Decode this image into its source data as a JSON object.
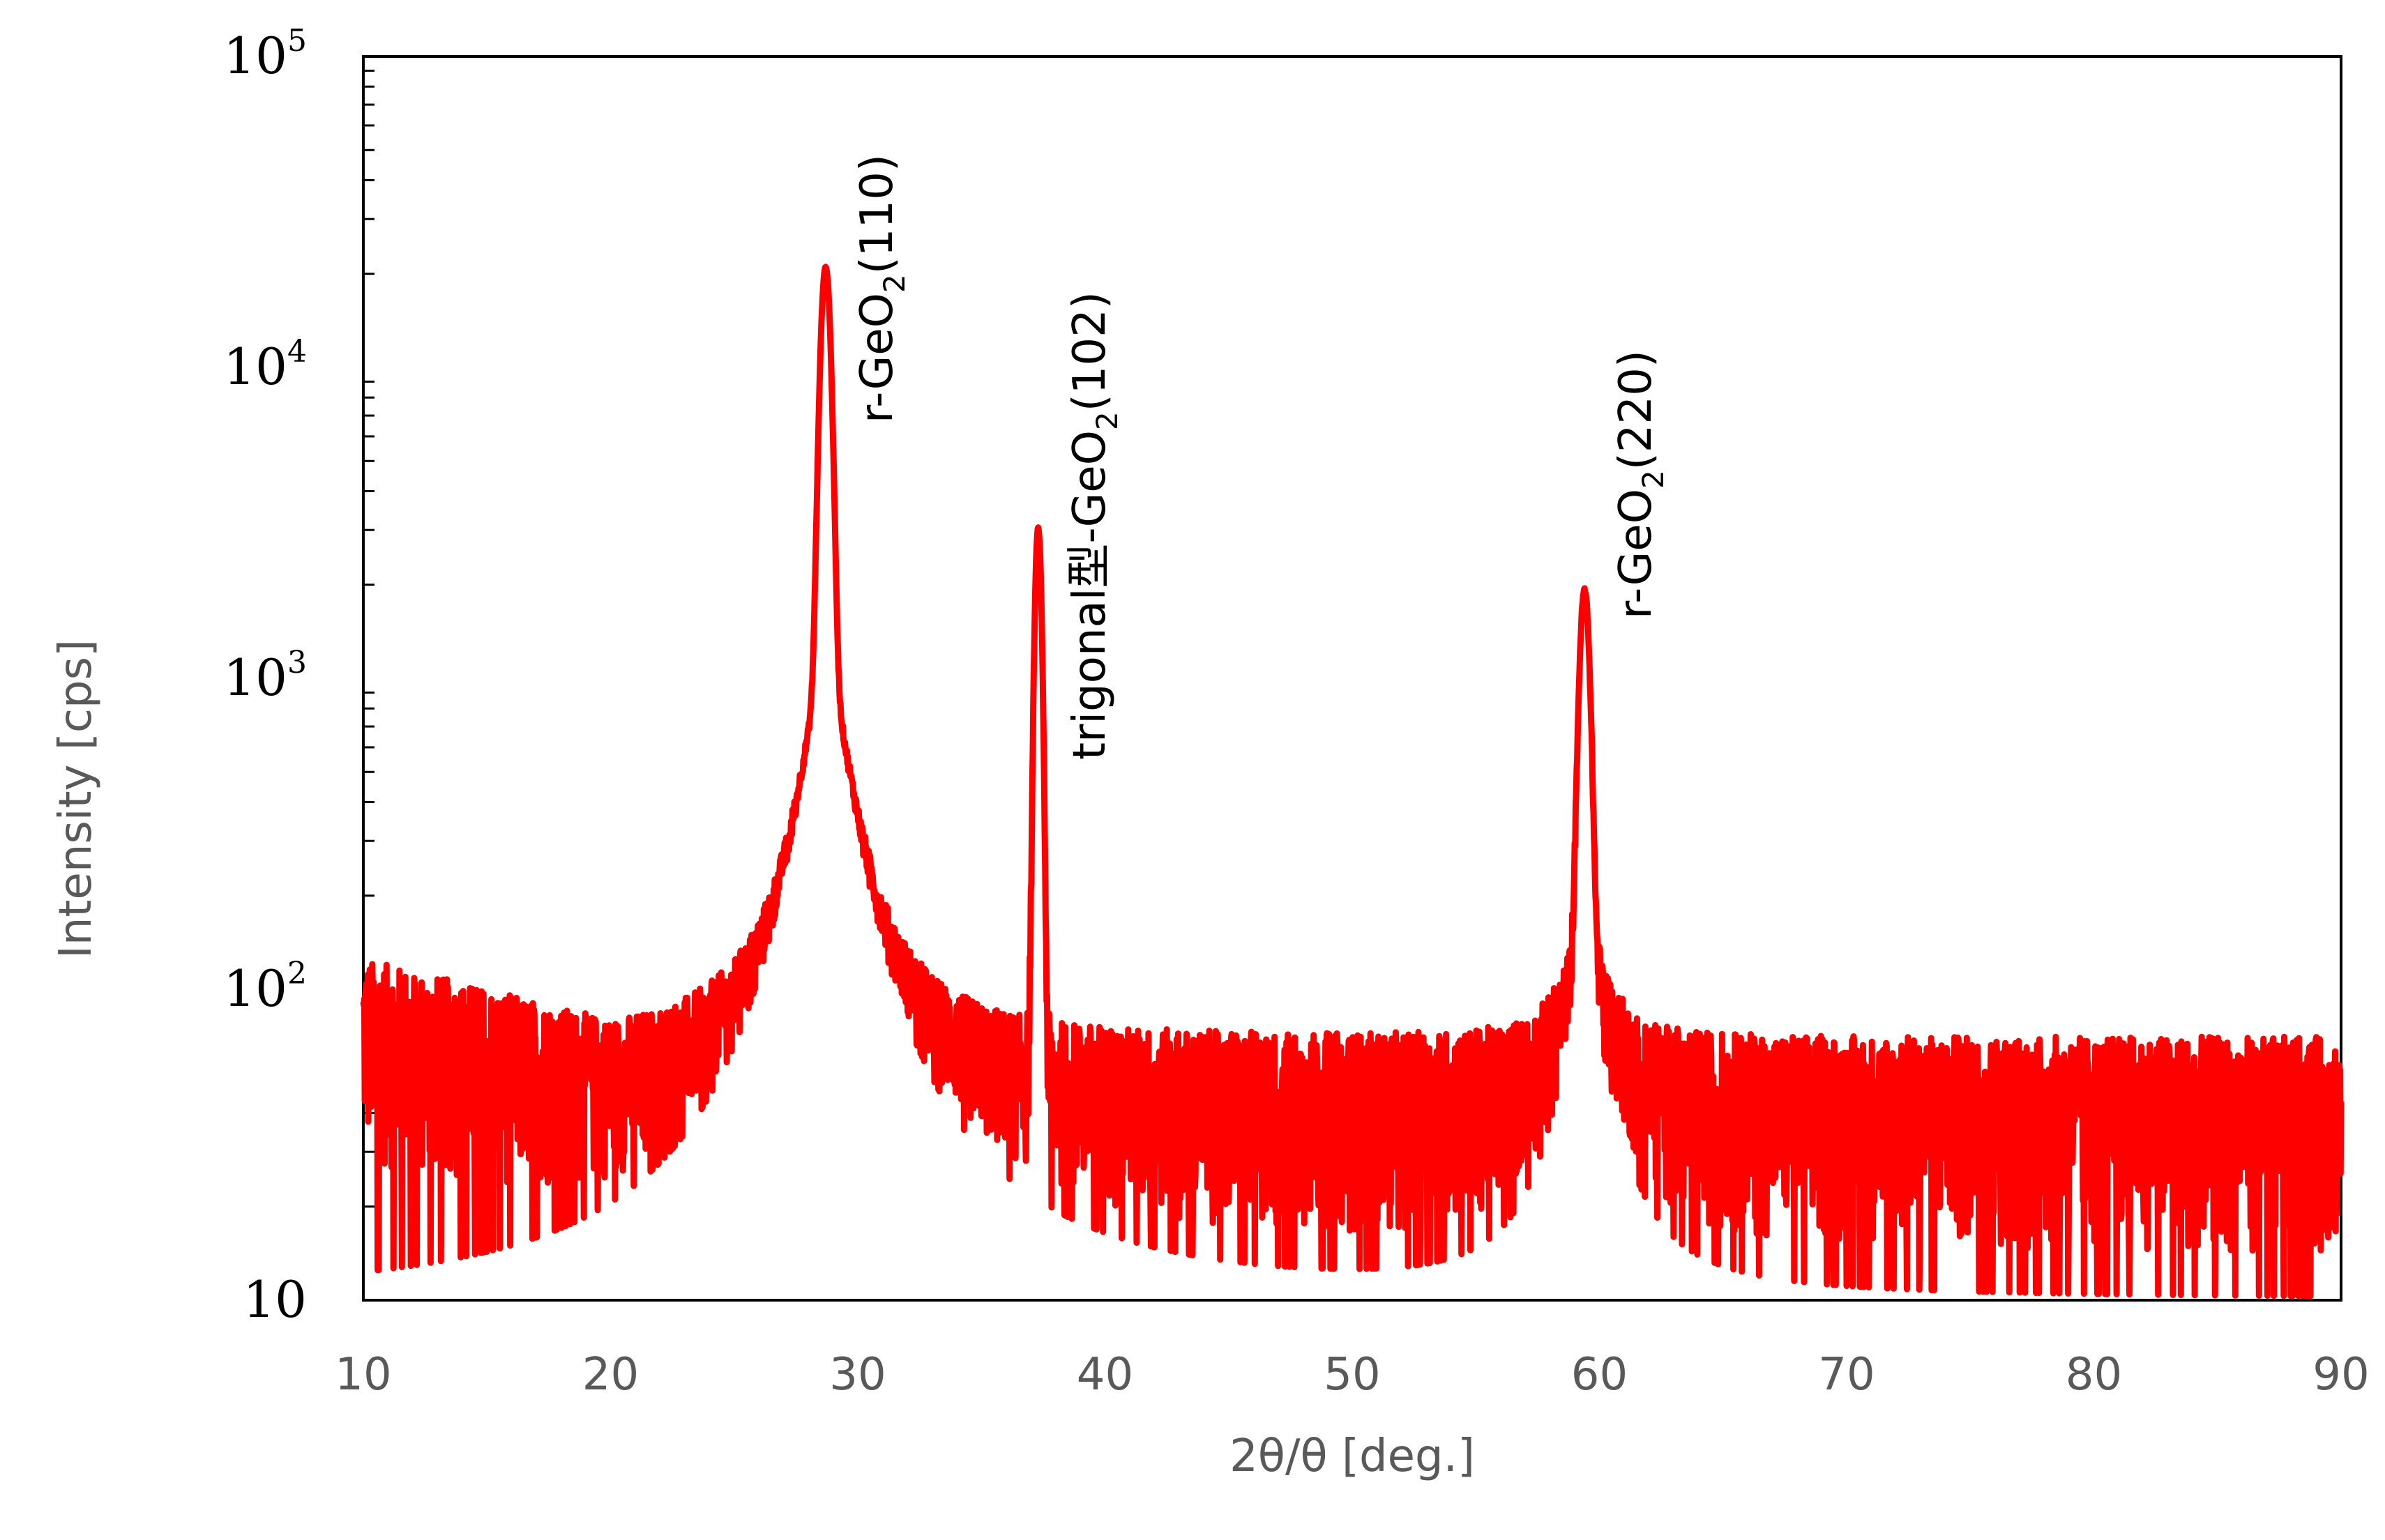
{
  "chart_data": {
    "type": "line",
    "title": "",
    "xlabel": "2θ/θ [deg.]",
    "ylabel": "Intensity [cps]",
    "xlim": [
      10,
      90
    ],
    "ylim": [
      10,
      100000
    ],
    "y_scale": "log",
    "x_ticks": [
      "10",
      "20",
      "30",
      "40",
      "50",
      "60",
      "70",
      "80",
      "90"
    ],
    "y_ticks": [
      {
        "value": 10,
        "base": "10",
        "exp": ""
      },
      {
        "value": 100,
        "base": "10",
        "exp": "2"
      },
      {
        "value": 1000,
        "base": "10",
        "exp": "3"
      },
      {
        "value": 10000,
        "base": "10",
        "exp": "4"
      },
      {
        "value": 100000,
        "base": "10",
        "exp": "5"
      }
    ],
    "grid": false,
    "legend": "none",
    "series_color": "#ff0000",
    "series": [
      {
        "peaks": [
          {
            "x": 28.7,
            "y": 20000
          },
          {
            "x": 37.3,
            "y": 3000
          },
          {
            "x": 59.4,
            "y": 1800
          }
        ],
        "background_level": 40
      }
    ],
    "annotations": [
      {
        "x": 28.7,
        "prefix": "r-GeO",
        "sub": "2",
        "suffix": "(110)"
      },
      {
        "x": 37.3,
        "prefix": "trigonal型-GeO",
        "sub": "2",
        "suffix": "(102)"
      },
      {
        "x": 59.4,
        "prefix": "r-GeO",
        "sub": "2",
        "suffix": "(220)"
      }
    ]
  }
}
